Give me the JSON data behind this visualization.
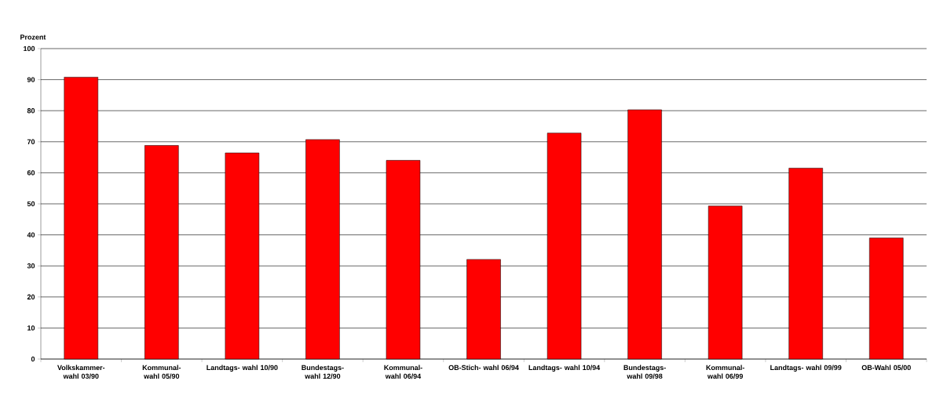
{
  "chart_data": {
    "type": "bar",
    "ylabel": "Prozent",
    "categories": [
      "Volkskammer- wahl 03/90",
      "Kommunal- wahl 05/90",
      "Landtags- wahl 10/90",
      "Bundestags- wahl 12/90",
      "Kommunal- wahl 06/94",
      "OB-Stich- wahl 06/94",
      "Landtags- wahl 10/94",
      "Bundestags- wahl 09/98",
      "Kommunal- wahl 06/99",
      "Landtags- wahl 09/99",
      "OB-Wahl 05/00"
    ],
    "values": [
      90.8,
      68.8,
      66.4,
      70.7,
      64.0,
      32.1,
      72.8,
      80.3,
      49.3,
      61.5,
      39.0
    ],
    "color": "#ff0000",
    "ylim": [
      0,
      100
    ],
    "yticks": [
      0,
      10,
      20,
      30,
      40,
      50,
      60,
      70,
      80,
      90,
      100
    ],
    "grid": "y"
  }
}
